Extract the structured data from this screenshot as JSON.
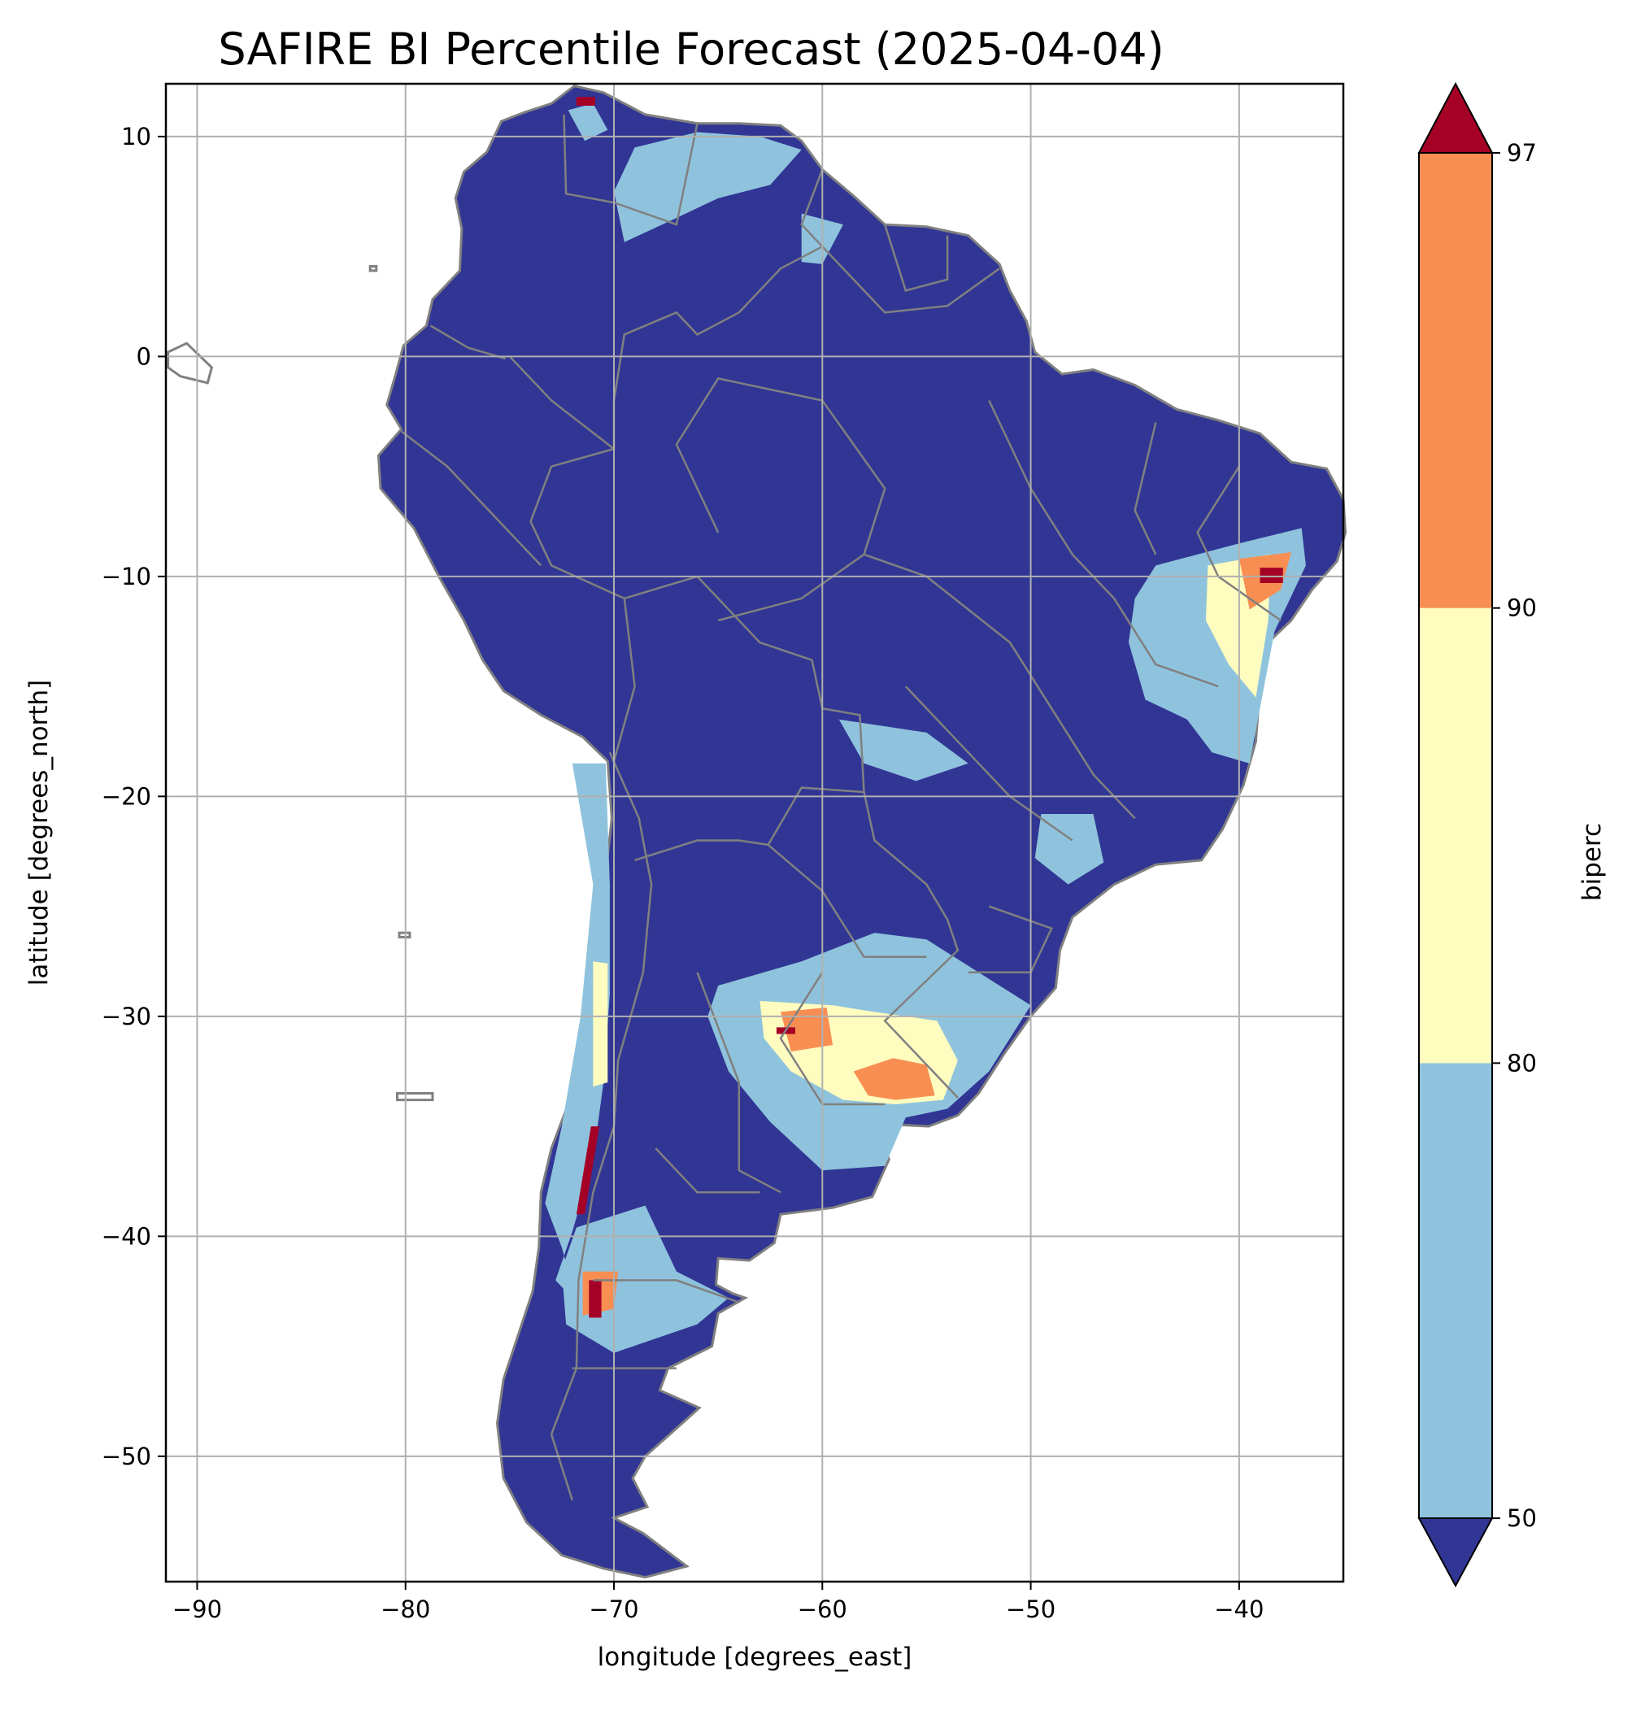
{
  "title": "SAFIRE BI Percentile Forecast (2025-04-04)",
  "chart_data": {
    "type": "heatmap",
    "title": "SAFIRE BI Percentile Forecast (2025-04-04)",
    "xlabel": "longitude [degrees_east]",
    "ylabel": "latitude [degrees_north]",
    "xlim": [
      -91.5,
      -35
    ],
    "ylim": [
      -55.7,
      12.4
    ],
    "xticks": [
      -90,
      -80,
      -70,
      -60,
      -50,
      -40
    ],
    "xtick_labels": [
      "−90",
      "−80",
      "−70",
      "−60",
      "−50",
      "−40"
    ],
    "yticks": [
      10,
      0,
      -10,
      -20,
      -30,
      -40,
      -50
    ],
    "ytick_labels": [
      "10",
      "0",
      "−10",
      "−20",
      "−30",
      "−40",
      "−50"
    ],
    "grid": true,
    "colorbar": {
      "label": "biperc",
      "ticks": [
        50,
        80,
        90,
        97
      ],
      "tick_labels": [
        "50",
        "80",
        "90",
        "97"
      ],
      "bins": [
        {
          "range": "<50",
          "color": "#313695"
        },
        {
          "range": "50-80",
          "color": "#8fc3dd"
        },
        {
          "range": "80-90",
          "color": "#fefcbf"
        },
        {
          "range": "90-97",
          "color": "#f88e52"
        },
        {
          "range": ">97",
          "color": "#a50026"
        }
      ],
      "extend": "both"
    },
    "colors": {
      "ocean": "#ffffff",
      "land_low": "#313695",
      "borders": "#808080",
      "grid": "#b0b0b0"
    }
  }
}
